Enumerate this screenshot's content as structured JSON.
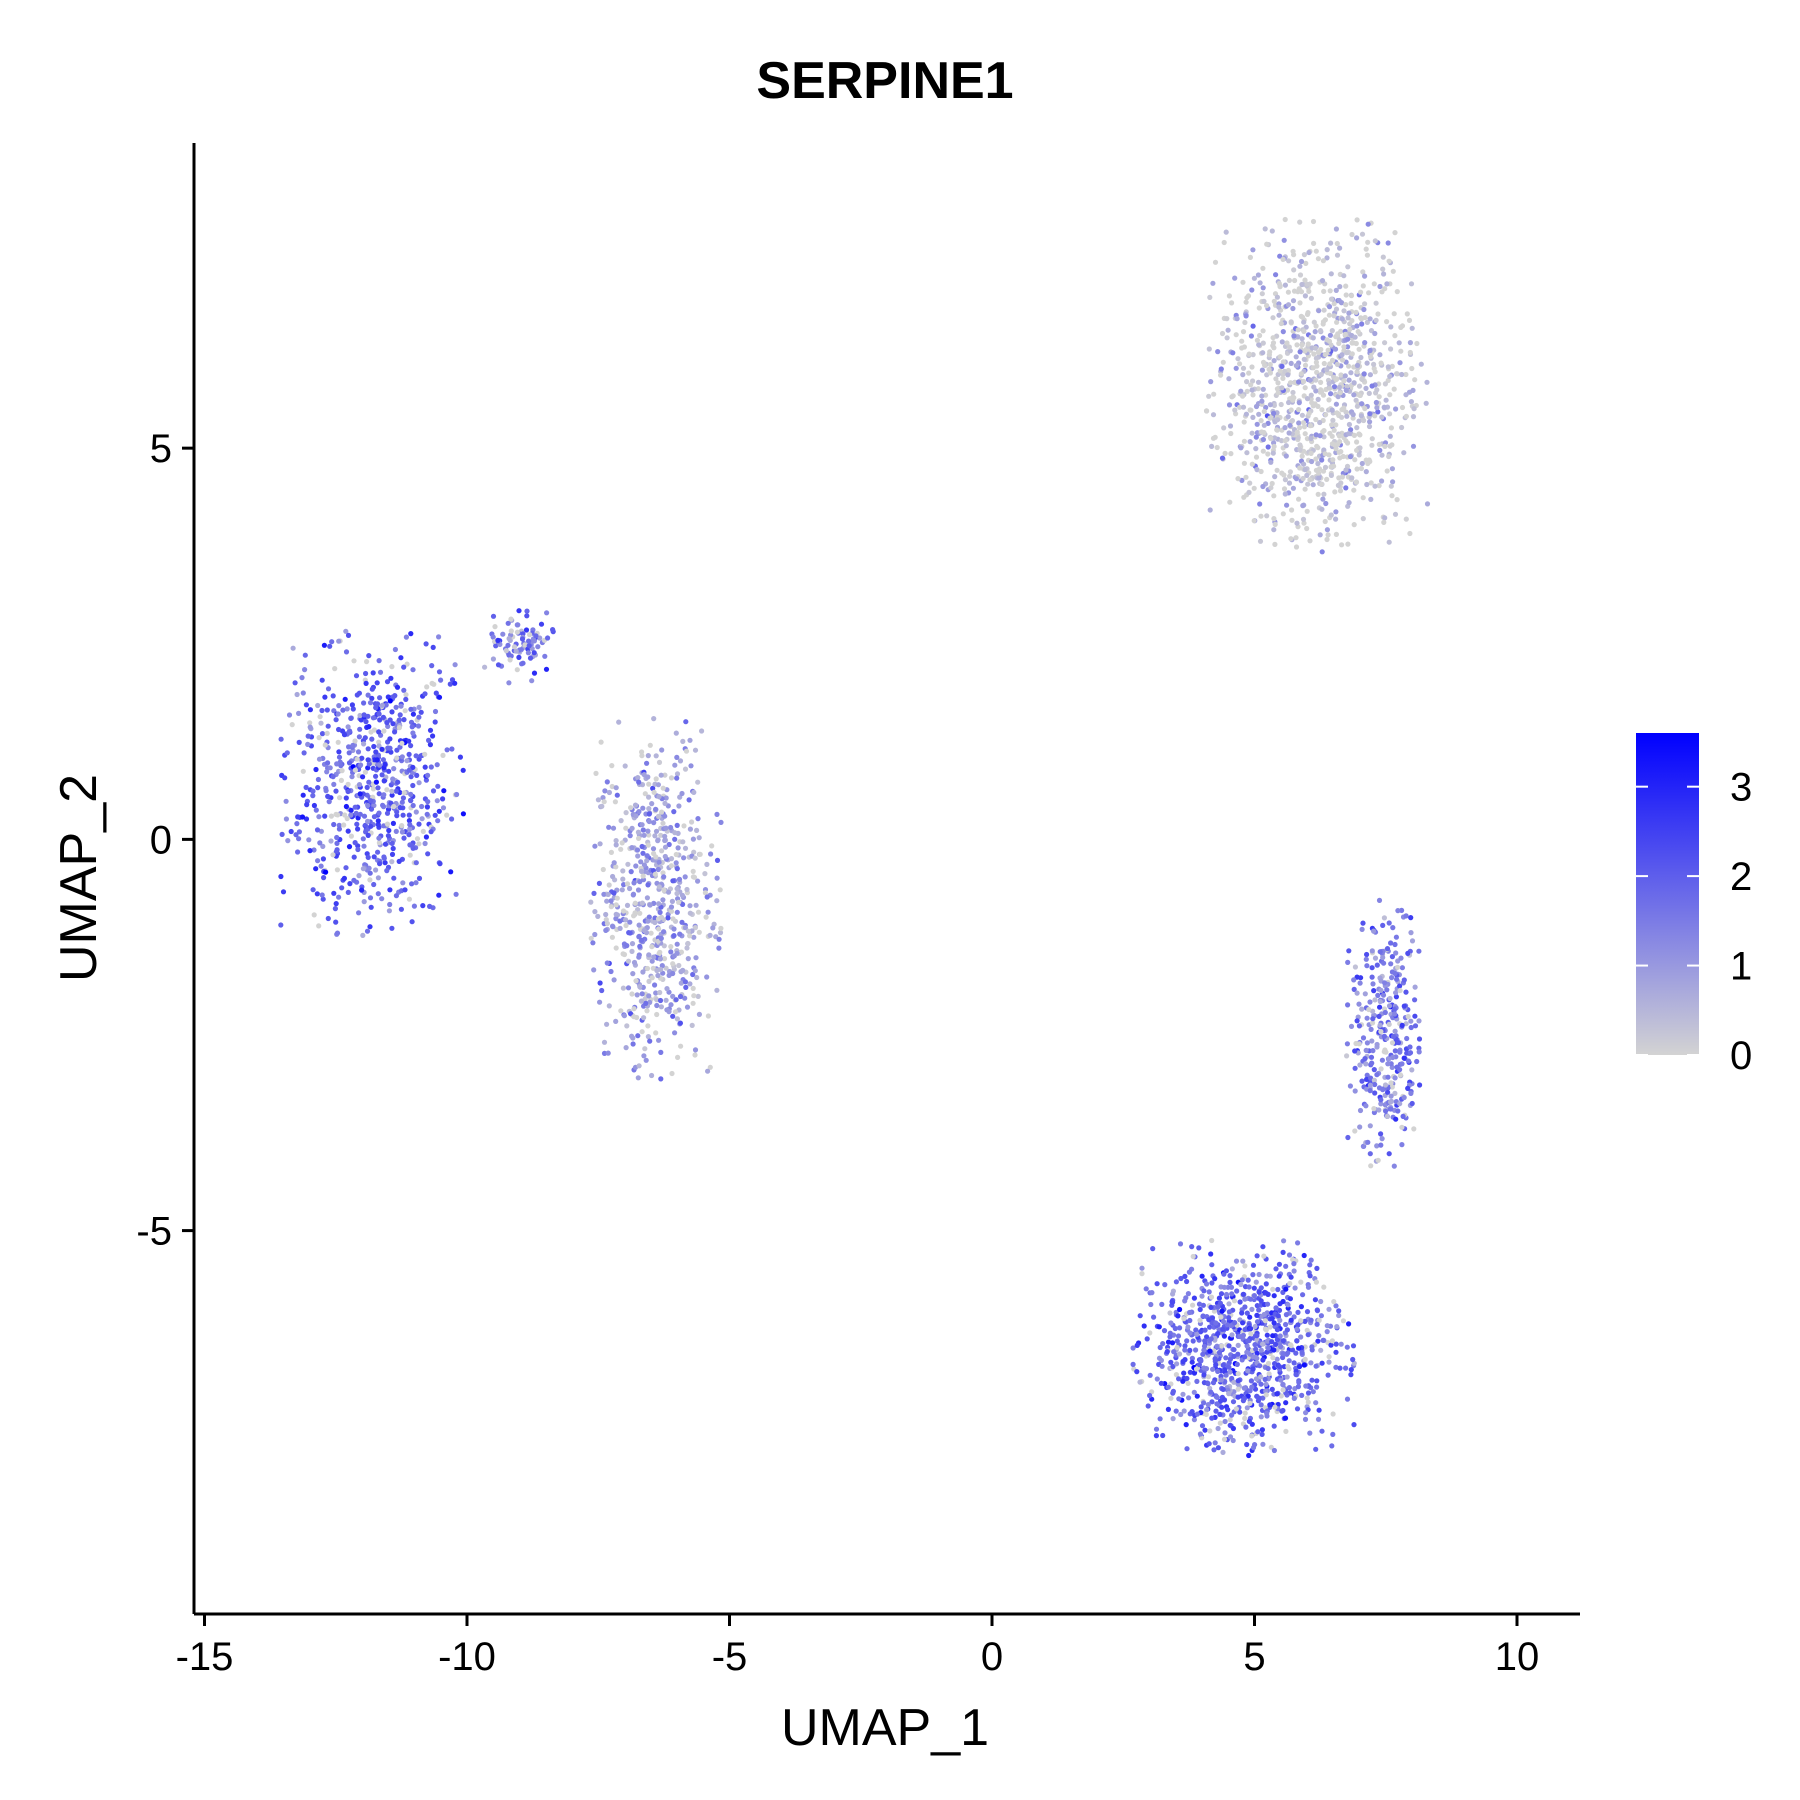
{
  "chart_data": {
    "type": "scatter",
    "title": "SERPINE1",
    "xlabel": "UMAP_1",
    "ylabel": "UMAP_2",
    "xlim": [
      -15.2,
      11.2
    ],
    "ylim": [
      -9.9,
      8.9
    ],
    "xticks": [
      -15,
      -10,
      -5,
      0,
      5,
      10
    ],
    "xtick_labels": [
      "-15",
      "-10",
      "-5",
      "0",
      "5",
      "10"
    ],
    "yticks": [
      -5,
      0,
      5
    ],
    "ytick_labels": [
      "-5",
      "0",
      "5"
    ],
    "grid": false,
    "color_scale": {
      "low": "#d3d3d3",
      "high": "#0000ff",
      "min": 0,
      "max": 3.6,
      "ticks": [
        0,
        1,
        2,
        3
      ],
      "tick_labels": [
        "0",
        "1",
        "2",
        "3"
      ],
      "legend_position": "right"
    },
    "clusters": [
      {
        "center": [
          -11.8,
          0.7
        ],
        "spread": [
          1.4,
          1.6
        ],
        "n": 700,
        "mean_expression": 1.9
      },
      {
        "center": [
          -9.0,
          2.5
        ],
        "spread": [
          0.6,
          0.4
        ],
        "n": 90,
        "mean_expression": 1.5
      },
      {
        "center": [
          -6.4,
          -0.8
        ],
        "spread": [
          1.0,
          1.9
        ],
        "n": 650,
        "mean_expression": 0.8
      },
      {
        "center": [
          6.2,
          5.8
        ],
        "spread": [
          1.7,
          1.7
        ],
        "n": 1100,
        "mean_expression": 0.2
      },
      {
        "center": [
          4.8,
          -6.5
        ],
        "spread": [
          1.7,
          1.1
        ],
        "n": 950,
        "mean_expression": 1.8
      },
      {
        "center": [
          7.5,
          -2.5
        ],
        "spread": [
          0.6,
          1.4
        ],
        "n": 350,
        "mean_expression": 1.5
      }
    ]
  }
}
